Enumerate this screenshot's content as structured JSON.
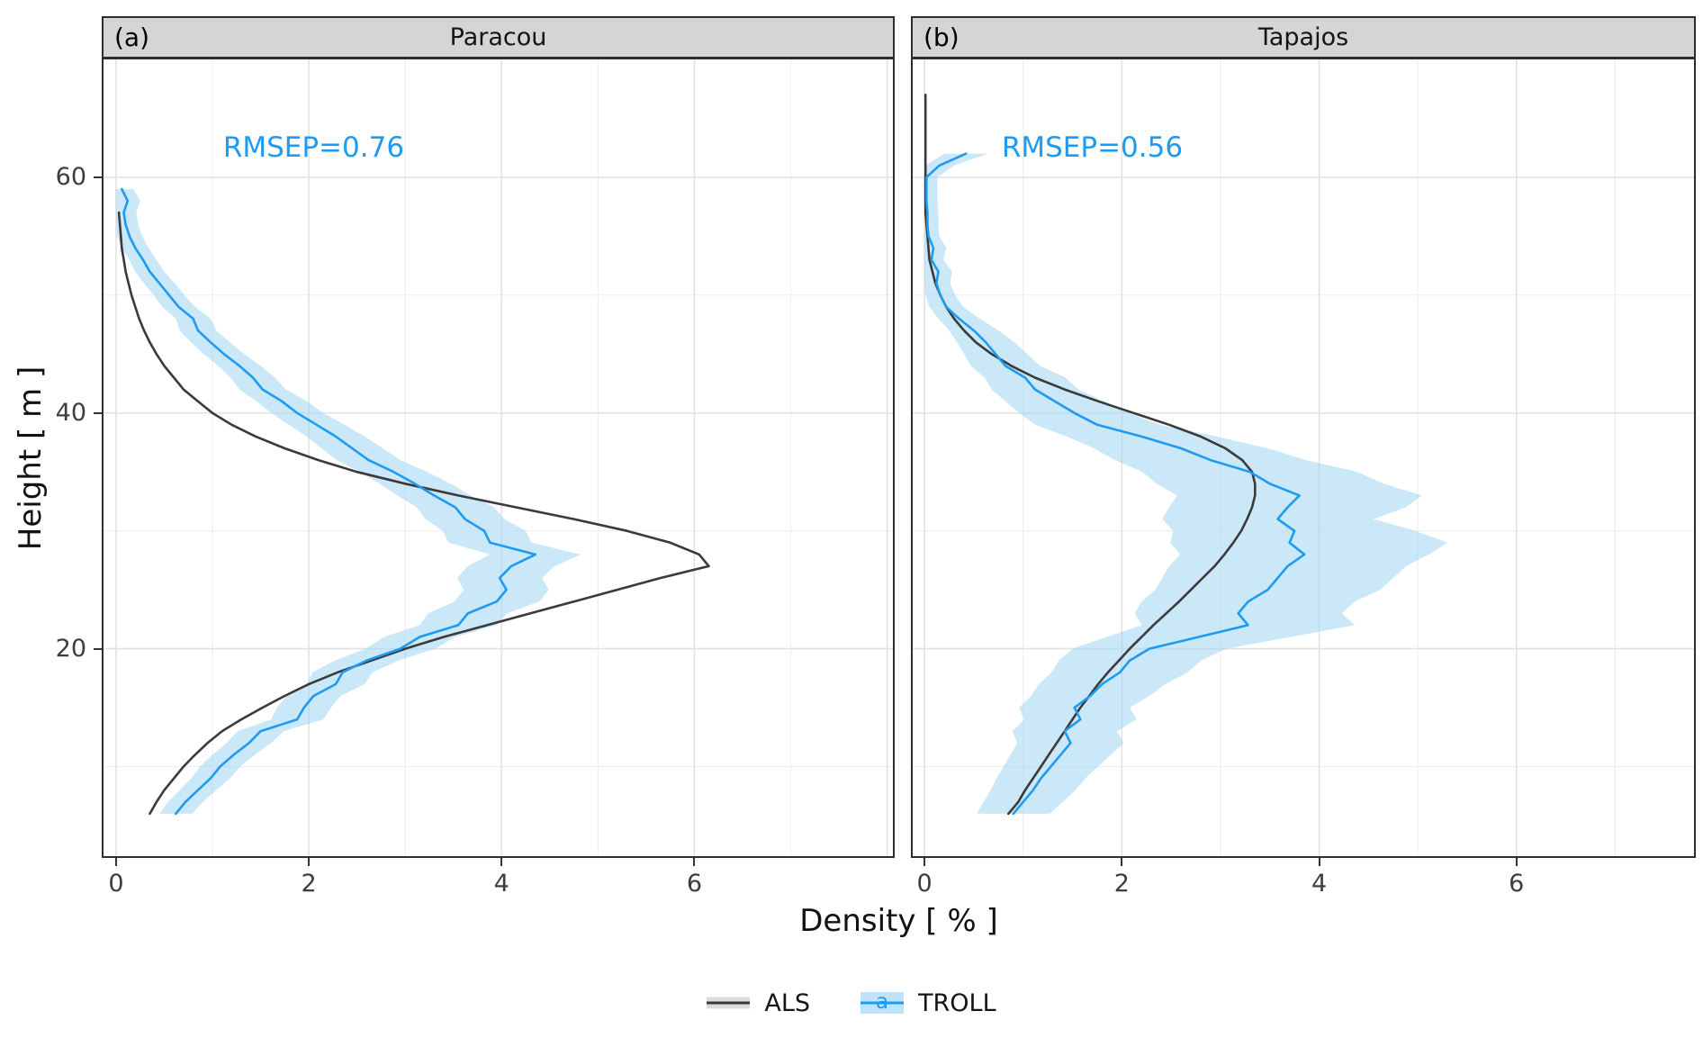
{
  "chart_data": {
    "type": "line",
    "xlabel": "Density [ % ]",
    "ylabel": "Height [ m ]",
    "x_ticks": [
      0,
      2,
      4,
      6
    ],
    "y_ticks": [
      20,
      40,
      60
    ],
    "x_major_grid": [
      0,
      2,
      4,
      6,
      8
    ],
    "x_minor_grid": [
      1,
      3,
      5,
      7
    ],
    "y_major_grid": [
      20,
      40,
      60
    ],
    "y_minor_grid": [
      10,
      30,
      50,
      70
    ],
    "ylim": [
      2.4,
      70
    ],
    "grid": true,
    "legend_position": "bottom",
    "legend_glyph": "a",
    "legend": [
      {
        "label": "ALS"
      },
      {
        "label": "TROLL"
      }
    ],
    "colors": {
      "als": "#3a3a3a",
      "troll": "#1e9bf0",
      "ribbon": "#9ed5f2",
      "grid_major": "#e2e2e2",
      "grid_minor": "#efefef",
      "strip_bg": "#d5d5d5",
      "annotation": "#1e9bf0",
      "legend_key_als_band": "#dcdcdc",
      "legend_key_troll_band": "#bfe3f8"
    },
    "panels": [
      {
        "tag": "(a)",
        "title": "Paracou",
        "annotation": "RMSEP=0.76",
        "annotation_xy": [
          2.05,
          62.5
        ],
        "xlim": [
          -0.13,
          8.06
        ],
        "als": {
          "heights": [
            6,
            7,
            8,
            9,
            10,
            11,
            12,
            13,
            14,
            15,
            16,
            17,
            18,
            19,
            20,
            21,
            22,
            23,
            24,
            25,
            26,
            27,
            28,
            29,
            30,
            31,
            32,
            33,
            34,
            35,
            36,
            37,
            38,
            39,
            40,
            41,
            42,
            43,
            44,
            45,
            46,
            47,
            48,
            49,
            50,
            51,
            52,
            53,
            54,
            55,
            56,
            57
          ],
          "values": [
            0.35,
            0.42,
            0.5,
            0.6,
            0.7,
            0.82,
            0.95,
            1.1,
            1.3,
            1.52,
            1.75,
            2.0,
            2.3,
            2.65,
            3.0,
            3.4,
            3.85,
            4.3,
            4.75,
            5.2,
            5.65,
            6.15,
            6.05,
            5.75,
            5.3,
            4.75,
            4.15,
            3.55,
            3.0,
            2.5,
            2.1,
            1.75,
            1.45,
            1.2,
            1.0,
            0.85,
            0.7,
            0.6,
            0.5,
            0.42,
            0.35,
            0.29,
            0.24,
            0.2,
            0.16,
            0.13,
            0.1,
            0.08,
            0.06,
            0.05,
            0.04,
            0.03
          ]
        },
        "troll": {
          "heights": [
            6,
            7,
            8,
            9,
            10,
            11,
            12,
            13,
            14,
            15,
            16,
            17,
            18,
            19,
            20,
            21,
            22,
            23,
            24,
            25,
            26,
            27,
            28,
            29,
            30,
            31,
            32,
            33,
            34,
            35,
            36,
            37,
            38,
            39,
            40,
            41,
            42,
            43,
            44,
            45,
            46,
            47,
            48,
            49,
            50,
            51,
            52,
            53,
            54,
            55,
            56,
            57,
            58,
            59
          ],
          "mean": [
            0.62,
            0.72,
            0.85,
            0.98,
            1.08,
            1.22,
            1.38,
            1.5,
            1.88,
            1.95,
            2.05,
            2.28,
            2.35,
            2.6,
            2.95,
            3.15,
            3.55,
            3.65,
            3.95,
            4.05,
            3.98,
            4.1,
            4.35,
            3.88,
            3.82,
            3.62,
            3.52,
            3.3,
            3.1,
            2.88,
            2.62,
            2.45,
            2.28,
            2.08,
            1.88,
            1.72,
            1.52,
            1.42,
            1.28,
            1.12,
            0.98,
            0.85,
            0.8,
            0.65,
            0.55,
            0.45,
            0.35,
            0.28,
            0.2,
            0.14,
            0.1,
            0.08,
            0.12,
            0.06
          ],
          "lo": [
            0.45,
            0.54,
            0.66,
            0.78,
            0.87,
            1.0,
            1.15,
            1.26,
            1.61,
            1.67,
            1.77,
            1.98,
            2.04,
            2.27,
            2.59,
            2.78,
            3.15,
            3.24,
            3.51,
            3.61,
            3.54,
            3.65,
            3.88,
            3.45,
            3.39,
            3.21,
            3.12,
            2.92,
            2.73,
            2.53,
            2.29,
            2.13,
            1.98,
            1.79,
            1.61,
            1.46,
            1.28,
            1.19,
            1.06,
            0.91,
            0.78,
            0.66,
            0.62,
            0.48,
            0.39,
            0.29,
            0.2,
            0.14,
            0.06,
            0.01,
            0.0,
            0.0,
            0.0,
            0.0
          ],
          "hi": [
            0.79,
            0.9,
            1.04,
            1.18,
            1.29,
            1.44,
            1.61,
            1.74,
            2.15,
            2.23,
            2.33,
            2.58,
            2.66,
            2.93,
            3.31,
            3.52,
            3.95,
            4.06,
            4.39,
            4.49,
            4.42,
            4.55,
            4.82,
            4.31,
            4.25,
            4.03,
            3.92,
            3.68,
            3.47,
            3.23,
            2.95,
            2.77,
            2.58,
            2.37,
            2.15,
            1.98,
            1.76,
            1.65,
            1.5,
            1.33,
            1.18,
            1.04,
            0.98,
            0.82,
            0.71,
            0.61,
            0.5,
            0.42,
            0.34,
            0.27,
            0.23,
            0.21,
            0.25,
            0.18
          ]
        }
      },
      {
        "tag": "(b)",
        "title": "Tapajos",
        "annotation": "RMSEP=0.56",
        "annotation_xy": [
          1.7,
          62.5
        ],
        "xlim": [
          -0.12,
          7.8
        ],
        "als": {
          "heights": [
            6,
            7,
            8,
            9,
            10,
            11,
            12,
            13,
            14,
            15,
            16,
            17,
            18,
            19,
            20,
            21,
            22,
            23,
            24,
            25,
            26,
            27,
            28,
            29,
            30,
            31,
            32,
            33,
            34,
            35,
            36,
            37,
            38,
            39,
            40,
            41,
            42,
            43,
            44,
            45,
            46,
            47,
            48,
            49,
            50,
            51,
            52,
            53,
            54,
            55,
            56,
            57,
            58,
            59,
            60,
            61,
            62,
            63,
            64,
            65,
            66,
            67
          ],
          "values": [
            0.85,
            0.95,
            1.02,
            1.1,
            1.18,
            1.26,
            1.34,
            1.42,
            1.5,
            1.58,
            1.67,
            1.76,
            1.86,
            1.97,
            2.08,
            2.2,
            2.32,
            2.45,
            2.58,
            2.7,
            2.82,
            2.94,
            3.04,
            3.13,
            3.21,
            3.27,
            3.32,
            3.35,
            3.35,
            3.32,
            3.22,
            3.05,
            2.8,
            2.48,
            2.12,
            1.76,
            1.42,
            1.12,
            0.88,
            0.68,
            0.52,
            0.4,
            0.3,
            0.22,
            0.16,
            0.11,
            0.08,
            0.05,
            0.04,
            0.03,
            0.02,
            0.01,
            0.01,
            0.01,
            0.01,
            0.01,
            0.01,
            0.01,
            0.01,
            0.01,
            0.01,
            0.01
          ]
        },
        "troll": {
          "heights": [
            6,
            7,
            8,
            9,
            10,
            11,
            12,
            13,
            14,
            15,
            16,
            17,
            18,
            19,
            20,
            21,
            22,
            23,
            24,
            25,
            26,
            27,
            28,
            29,
            30,
            31,
            32,
            33,
            34,
            35,
            36,
            37,
            38,
            39,
            40,
            41,
            42,
            43,
            44,
            45,
            46,
            47,
            48,
            49,
            50,
            51,
            52,
            53,
            54,
            55,
            56,
            57,
            58,
            59,
            60,
            61,
            62
          ],
          "mean": [
            0.9,
            1.0,
            1.1,
            1.18,
            1.28,
            1.38,
            1.48,
            1.42,
            1.58,
            1.52,
            1.68,
            1.8,
            1.98,
            2.08,
            2.28,
            2.78,
            3.28,
            3.18,
            3.28,
            3.48,
            3.58,
            3.68,
            3.85,
            3.7,
            3.75,
            3.58,
            3.68,
            3.8,
            3.5,
            3.3,
            2.9,
            2.6,
            2.2,
            1.75,
            1.52,
            1.32,
            1.12,
            1.02,
            0.82,
            0.72,
            0.62,
            0.5,
            0.35,
            0.22,
            0.16,
            0.12,
            0.14,
            0.07,
            0.09,
            0.04,
            0.03,
            0.03,
            0.02,
            0.02,
            0.02,
            0.15,
            0.42
          ],
          "lo": [
            0.53,
            0.6,
            0.67,
            0.73,
            0.8,
            0.87,
            0.94,
            0.89,
            1.01,
            0.96,
            1.08,
            1.16,
            1.29,
            1.36,
            1.5,
            1.85,
            2.2,
            2.13,
            2.2,
            2.34,
            2.41,
            2.48,
            2.59,
            2.49,
            2.52,
            2.41,
            2.48,
            2.56,
            2.35,
            2.21,
            1.93,
            1.72,
            1.44,
            1.12,
            0.96,
            0.82,
            0.68,
            0.61,
            0.47,
            0.4,
            0.33,
            0.25,
            0.14,
            0.05,
            0.01,
            0.0,
            0.0,
            0.0,
            0.0,
            0.0,
            0.0,
            0.0,
            0.0,
            0.0,
            0.0,
            0.01,
            0.2
          ],
          "hi": [
            1.27,
            1.4,
            1.53,
            1.63,
            1.76,
            1.89,
            2.02,
            1.95,
            2.15,
            2.08,
            2.28,
            2.44,
            2.67,
            2.8,
            3.06,
            3.71,
            4.36,
            4.23,
            4.36,
            4.62,
            4.75,
            4.88,
            5.11,
            5.3,
            4.98,
            4.55,
            4.88,
            5.04,
            4.65,
            4.39,
            3.87,
            3.48,
            2.96,
            2.38,
            2.08,
            1.82,
            1.56,
            1.43,
            1.17,
            1.04,
            0.91,
            0.75,
            0.56,
            0.39,
            0.31,
            0.26,
            0.28,
            0.19,
            0.22,
            0.15,
            0.14,
            0.14,
            0.13,
            0.13,
            0.13,
            0.3,
            0.64
          ]
        }
      }
    ]
  }
}
